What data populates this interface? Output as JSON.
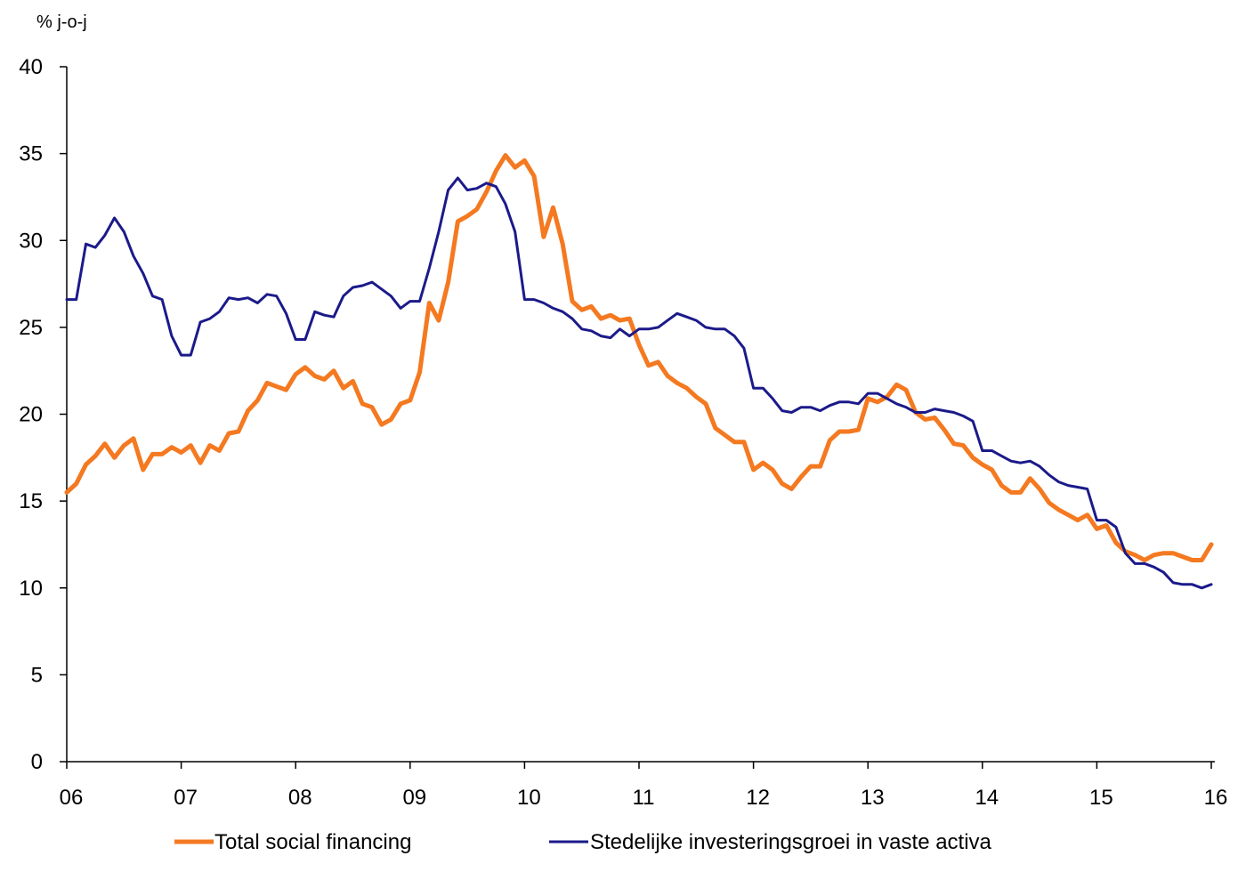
{
  "chart_data": {
    "type": "line",
    "unit_label": "% j-o-j",
    "ylim": [
      0,
      40
    ],
    "y_ticks": [
      0,
      5,
      10,
      15,
      20,
      25,
      30,
      35,
      40
    ],
    "x_tick_labels": [
      "06",
      "07",
      "08",
      "09",
      "10",
      "11",
      "12",
      "13",
      "14",
      "15",
      "16"
    ],
    "grid": false,
    "legend_position": "bottom",
    "colors": {
      "tsf": "#f47920",
      "fai": "#1b1a8a"
    },
    "series": [
      {
        "name": "Total social financing",
        "color": "#f47920",
        "points": [
          [
            2006.0,
            15.5
          ],
          [
            2006.083,
            16.0
          ],
          [
            2006.167,
            17.1
          ],
          [
            2006.25,
            17.6
          ],
          [
            2006.333,
            18.3
          ],
          [
            2006.417,
            17.5
          ],
          [
            2006.5,
            18.2
          ],
          [
            2006.583,
            18.6
          ],
          [
            2006.667,
            16.8
          ],
          [
            2006.75,
            17.7
          ],
          [
            2006.833,
            17.7
          ],
          [
            2006.917,
            18.1
          ],
          [
            2007.0,
            17.8
          ],
          [
            2007.083,
            18.2
          ],
          [
            2007.167,
            17.2
          ],
          [
            2007.25,
            18.2
          ],
          [
            2007.333,
            17.9
          ],
          [
            2007.417,
            18.9
          ],
          [
            2007.5,
            19.0
          ],
          [
            2007.583,
            20.2
          ],
          [
            2007.667,
            20.8
          ],
          [
            2007.75,
            21.8
          ],
          [
            2007.833,
            21.6
          ],
          [
            2007.917,
            21.4
          ],
          [
            2008.0,
            22.3
          ],
          [
            2008.083,
            22.7
          ],
          [
            2008.167,
            22.2
          ],
          [
            2008.25,
            22.0
          ],
          [
            2008.333,
            22.5
          ],
          [
            2008.417,
            21.5
          ],
          [
            2008.5,
            21.9
          ],
          [
            2008.583,
            20.6
          ],
          [
            2008.667,
            20.4
          ],
          [
            2008.75,
            19.4
          ],
          [
            2008.833,
            19.7
          ],
          [
            2008.917,
            20.6
          ],
          [
            2009.0,
            20.8
          ],
          [
            2009.083,
            22.4
          ],
          [
            2009.167,
            26.4
          ],
          [
            2009.25,
            25.4
          ],
          [
            2009.333,
            27.6
          ],
          [
            2009.417,
            31.1
          ],
          [
            2009.5,
            31.4
          ],
          [
            2009.583,
            31.8
          ],
          [
            2009.667,
            32.8
          ],
          [
            2009.75,
            34.0
          ],
          [
            2009.833,
            34.9
          ],
          [
            2009.917,
            34.2
          ],
          [
            2010.0,
            34.6
          ],
          [
            2010.083,
            33.7
          ],
          [
            2010.167,
            30.2
          ],
          [
            2010.25,
            31.9
          ],
          [
            2010.333,
            29.8
          ],
          [
            2010.417,
            26.5
          ],
          [
            2010.5,
            26.0
          ],
          [
            2010.583,
            26.2
          ],
          [
            2010.667,
            25.5
          ],
          [
            2010.75,
            25.7
          ],
          [
            2010.833,
            25.4
          ],
          [
            2010.917,
            25.5
          ],
          [
            2011.0,
            24.0
          ],
          [
            2011.083,
            22.8
          ],
          [
            2011.167,
            23.0
          ],
          [
            2011.25,
            22.2
          ],
          [
            2011.333,
            21.8
          ],
          [
            2011.417,
            21.5
          ],
          [
            2011.5,
            21.0
          ],
          [
            2011.583,
            20.6
          ],
          [
            2011.667,
            19.2
          ],
          [
            2011.75,
            18.8
          ],
          [
            2011.833,
            18.4
          ],
          [
            2011.917,
            18.4
          ],
          [
            2012.0,
            16.8
          ],
          [
            2012.083,
            17.2
          ],
          [
            2012.167,
            16.8
          ],
          [
            2012.25,
            16.0
          ],
          [
            2012.333,
            15.7
          ],
          [
            2012.417,
            16.4
          ],
          [
            2012.5,
            17.0
          ],
          [
            2012.583,
            17.0
          ],
          [
            2012.667,
            18.5
          ],
          [
            2012.75,
            19.0
          ],
          [
            2012.833,
            19.0
          ],
          [
            2012.917,
            19.1
          ],
          [
            2013.0,
            20.9
          ],
          [
            2013.083,
            20.7
          ],
          [
            2013.167,
            21.0
          ],
          [
            2013.25,
            21.7
          ],
          [
            2013.333,
            21.4
          ],
          [
            2013.417,
            20.1
          ],
          [
            2013.5,
            19.7
          ],
          [
            2013.583,
            19.8
          ],
          [
            2013.667,
            19.1
          ],
          [
            2013.75,
            18.3
          ],
          [
            2013.833,
            18.2
          ],
          [
            2013.917,
            17.5
          ],
          [
            2014.0,
            17.1
          ],
          [
            2014.083,
            16.8
          ],
          [
            2014.167,
            15.9
          ],
          [
            2014.25,
            15.5
          ],
          [
            2014.333,
            15.5
          ],
          [
            2014.417,
            16.3
          ],
          [
            2014.5,
            15.7
          ],
          [
            2014.583,
            14.9
          ],
          [
            2014.667,
            14.5
          ],
          [
            2014.75,
            14.2
          ],
          [
            2014.833,
            13.9
          ],
          [
            2014.917,
            14.2
          ],
          [
            2015.0,
            13.4
          ],
          [
            2015.083,
            13.6
          ],
          [
            2015.167,
            12.6
          ],
          [
            2015.25,
            12.1
          ],
          [
            2015.333,
            11.9
          ],
          [
            2015.417,
            11.6
          ],
          [
            2015.5,
            11.9
          ],
          [
            2015.583,
            12.0
          ],
          [
            2015.667,
            12.0
          ],
          [
            2015.75,
            11.8
          ],
          [
            2015.833,
            11.6
          ],
          [
            2015.917,
            11.6
          ],
          [
            2016.0,
            12.5
          ]
        ]
      },
      {
        "name": "Stedelijke investeringsgroei in vaste activa",
        "color": "#1b1a8a",
        "points": [
          [
            2006.0,
            26.6
          ],
          [
            2006.083,
            26.6
          ],
          [
            2006.167,
            29.8
          ],
          [
            2006.25,
            29.6
          ],
          [
            2006.333,
            30.3
          ],
          [
            2006.417,
            31.3
          ],
          [
            2006.5,
            30.5
          ],
          [
            2006.583,
            29.1
          ],
          [
            2006.667,
            28.1
          ],
          [
            2006.75,
            26.8
          ],
          [
            2006.833,
            26.6
          ],
          [
            2006.917,
            24.5
          ],
          [
            2007.0,
            23.4
          ],
          [
            2007.083,
            23.4
          ],
          [
            2007.167,
            25.3
          ],
          [
            2007.25,
            25.5
          ],
          [
            2007.333,
            25.9
          ],
          [
            2007.417,
            26.7
          ],
          [
            2007.5,
            26.6
          ],
          [
            2007.583,
            26.7
          ],
          [
            2007.667,
            26.4
          ],
          [
            2007.75,
            26.9
          ],
          [
            2007.833,
            26.8
          ],
          [
            2007.917,
            25.8
          ],
          [
            2008.0,
            24.3
          ],
          [
            2008.083,
            24.3
          ],
          [
            2008.167,
            25.9
          ],
          [
            2008.25,
            25.7
          ],
          [
            2008.333,
            25.6
          ],
          [
            2008.417,
            26.8
          ],
          [
            2008.5,
            27.3
          ],
          [
            2008.583,
            27.4
          ],
          [
            2008.667,
            27.6
          ],
          [
            2008.75,
            27.2
          ],
          [
            2008.833,
            26.8
          ],
          [
            2008.917,
            26.1
          ],
          [
            2009.0,
            26.5
          ],
          [
            2009.083,
            26.5
          ],
          [
            2009.167,
            28.4
          ],
          [
            2009.25,
            30.5
          ],
          [
            2009.333,
            32.9
          ],
          [
            2009.417,
            33.6
          ],
          [
            2009.5,
            32.9
          ],
          [
            2009.583,
            33.0
          ],
          [
            2009.667,
            33.3
          ],
          [
            2009.75,
            33.1
          ],
          [
            2009.833,
            32.1
          ],
          [
            2009.917,
            30.5
          ],
          [
            2010.0,
            26.6
          ],
          [
            2010.083,
            26.6
          ],
          [
            2010.167,
            26.4
          ],
          [
            2010.25,
            26.1
          ],
          [
            2010.333,
            25.9
          ],
          [
            2010.417,
            25.5
          ],
          [
            2010.5,
            24.9
          ],
          [
            2010.583,
            24.8
          ],
          [
            2010.667,
            24.5
          ],
          [
            2010.75,
            24.4
          ],
          [
            2010.833,
            24.9
          ],
          [
            2010.917,
            24.5
          ],
          [
            2011.0,
            24.9
          ],
          [
            2011.083,
            24.9
          ],
          [
            2011.167,
            25.0
          ],
          [
            2011.25,
            25.4
          ],
          [
            2011.333,
            25.8
          ],
          [
            2011.417,
            25.6
          ],
          [
            2011.5,
            25.4
          ],
          [
            2011.583,
            25.0
          ],
          [
            2011.667,
            24.9
          ],
          [
            2011.75,
            24.9
          ],
          [
            2011.833,
            24.5
          ],
          [
            2011.917,
            23.8
          ],
          [
            2012.0,
            21.5
          ],
          [
            2012.083,
            21.5
          ],
          [
            2012.167,
            20.9
          ],
          [
            2012.25,
            20.2
          ],
          [
            2012.333,
            20.1
          ],
          [
            2012.417,
            20.4
          ],
          [
            2012.5,
            20.4
          ],
          [
            2012.583,
            20.2
          ],
          [
            2012.667,
            20.5
          ],
          [
            2012.75,
            20.7
          ],
          [
            2012.833,
            20.7
          ],
          [
            2012.917,
            20.6
          ],
          [
            2013.0,
            21.2
          ],
          [
            2013.083,
            21.2
          ],
          [
            2013.167,
            20.9
          ],
          [
            2013.25,
            20.6
          ],
          [
            2013.333,
            20.4
          ],
          [
            2013.417,
            20.1
          ],
          [
            2013.5,
            20.1
          ],
          [
            2013.583,
            20.3
          ],
          [
            2013.667,
            20.2
          ],
          [
            2013.75,
            20.1
          ],
          [
            2013.833,
            19.9
          ],
          [
            2013.917,
            19.6
          ],
          [
            2014.0,
            17.9
          ],
          [
            2014.083,
            17.9
          ],
          [
            2014.167,
            17.6
          ],
          [
            2014.25,
            17.3
          ],
          [
            2014.333,
            17.2
          ],
          [
            2014.417,
            17.3
          ],
          [
            2014.5,
            17.0
          ],
          [
            2014.583,
            16.5
          ],
          [
            2014.667,
            16.1
          ],
          [
            2014.75,
            15.9
          ],
          [
            2014.833,
            15.8
          ],
          [
            2014.917,
            15.7
          ],
          [
            2015.0,
            13.9
          ],
          [
            2015.083,
            13.9
          ],
          [
            2015.167,
            13.5
          ],
          [
            2015.25,
            12.0
          ],
          [
            2015.333,
            11.4
          ],
          [
            2015.417,
            11.4
          ],
          [
            2015.5,
            11.2
          ],
          [
            2015.583,
            10.9
          ],
          [
            2015.667,
            10.3
          ],
          [
            2015.75,
            10.2
          ],
          [
            2015.833,
            10.2
          ],
          [
            2015.917,
            10.0
          ],
          [
            2016.0,
            10.2
          ]
        ]
      }
    ]
  }
}
